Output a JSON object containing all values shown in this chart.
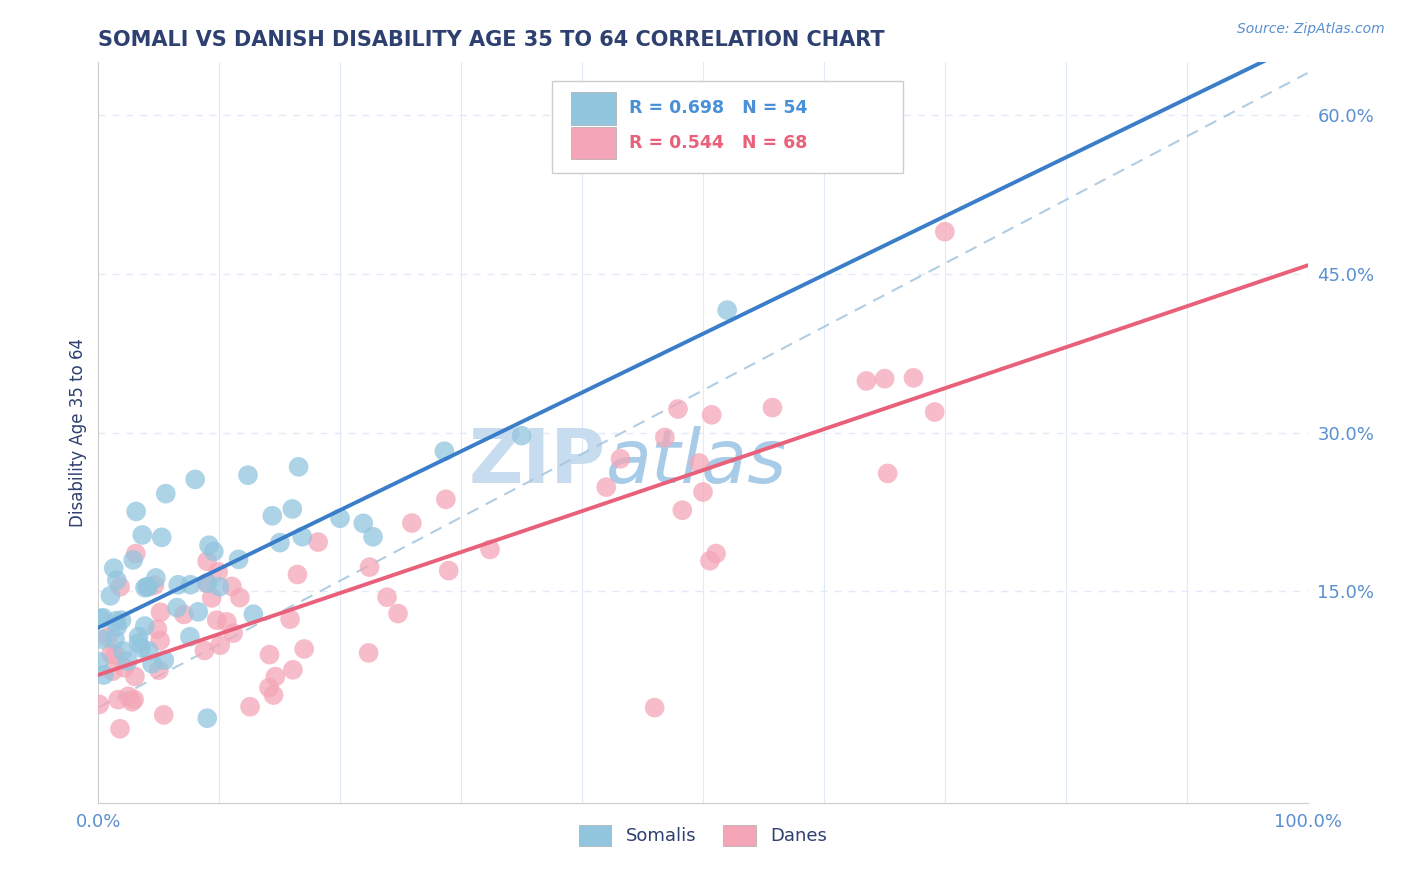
{
  "title": "SOMALI VS DANISH DISABILITY AGE 35 TO 64 CORRELATION CHART",
  "source_text": "Source: ZipAtlas.com",
  "ylabel": "Disability Age 35 to 64",
  "R_somali": 0.698,
  "N_somali": 54,
  "R_danish": 0.544,
  "N_danish": 68,
  "somali_color": "#92C5DE",
  "danish_color": "#F4A6B8",
  "somali_line_color": "#3A7DC9",
  "danish_line_color": "#E8607A",
  "ref_line_color": "#A8C8E0",
  "title_color": "#2E4070",
  "axis_color": "#5A8FD0",
  "legend_somali_color": "#4A90D9",
  "legend_danish_color": "#E8607A",
  "watermark_color": "#C8DCF0",
  "background_color": "#FFFFFF",
  "grid_color": "#E0EAFA",
  "xlim": [
    0.0,
    1.0
  ],
  "ylim": [
    -0.05,
    0.65
  ],
  "yticks": [
    0.15,
    0.3,
    0.45,
    0.6
  ],
  "ytick_labels": [
    "15.0%",
    "30.0%",
    "45.0%",
    "60.0%"
  ],
  "xtick_labels": [
    "0.0%",
    "100.0%"
  ],
  "somali_seed": 10,
  "danish_seed": 20,
  "figsize": [
    14.06,
    8.92
  ],
  "dpi": 100
}
